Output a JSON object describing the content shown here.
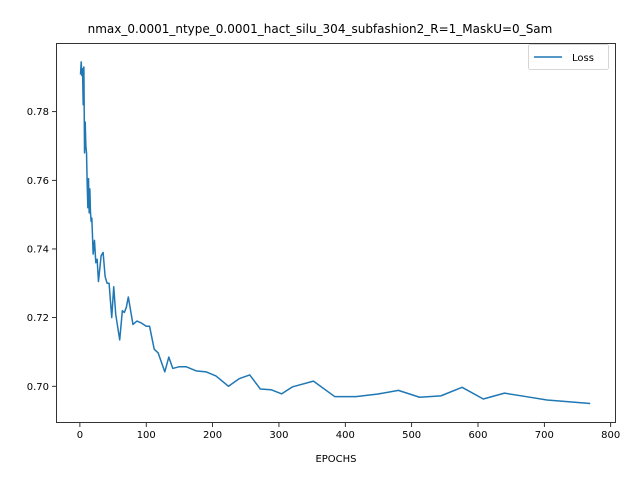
{
  "chart_data": {
    "type": "line",
    "title": "nmax_0.0001_ntype_0.0001_hact_silu_304_subfashion2_R=1_MaskU=0_Sam",
    "xlabel": "EPOCHS",
    "ylabel": "",
    "xlim": [
      -36,
      808
    ],
    "ylim": [
      0.6893,
      0.8
    ],
    "xticks": [
      0,
      100,
      200,
      300,
      400,
      500,
      600,
      700,
      800
    ],
    "yticks": [
      0.7,
      0.72,
      0.74,
      0.76,
      0.78
    ],
    "ytick_labels": [
      "0.70",
      "0.72",
      "0.74",
      "0.76",
      "0.78"
    ],
    "grid": false,
    "legend_position": "top-right",
    "series": [
      {
        "name": "Loss",
        "color": "#1f77b4",
        "x": [
          1,
          2,
          3,
          4,
          5,
          6,
          7,
          8,
          9,
          10,
          11,
          12,
          13,
          14,
          15,
          16,
          17,
          18,
          20,
          22,
          24,
          26,
          28,
          32,
          35,
          38,
          41,
          44,
          48,
          51,
          54,
          60,
          64,
          67,
          70,
          73,
          80,
          86,
          92,
          100,
          105,
          112,
          118,
          128,
          134,
          140,
          150,
          160,
          175,
          190,
          205,
          224,
          240,
          256,
          272,
          288,
          304,
          320,
          352,
          384,
          416,
          448,
          480,
          512,
          544,
          576,
          608,
          640,
          672,
          704,
          768
        ],
        "values": [
          0.791,
          0.7945,
          0.7905,
          0.7925,
          0.782,
          0.793,
          0.768,
          0.777,
          0.77,
          0.768,
          0.759,
          0.752,
          0.7605,
          0.7505,
          0.7575,
          0.7505,
          0.748,
          0.749,
          0.7385,
          0.7425,
          0.736,
          0.737,
          0.7305,
          0.738,
          0.739,
          0.732,
          0.73,
          0.73,
          0.72,
          0.729,
          0.721,
          0.7135,
          0.722,
          0.7215,
          0.723,
          0.726,
          0.718,
          0.719,
          0.7185,
          0.7175,
          0.7175,
          0.7108,
          0.7097,
          0.7042,
          0.7085,
          0.7052,
          0.7057,
          0.7057,
          0.7045,
          0.7042,
          0.703,
          0.7,
          0.7022,
          0.7033,
          0.6992,
          0.699,
          0.6978,
          0.6998,
          0.7015,
          0.697,
          0.697,
          0.6977,
          0.6988,
          0.6968,
          0.6972,
          0.6997,
          0.6963,
          0.698,
          0.697,
          0.696,
          0.695
        ]
      }
    ]
  }
}
